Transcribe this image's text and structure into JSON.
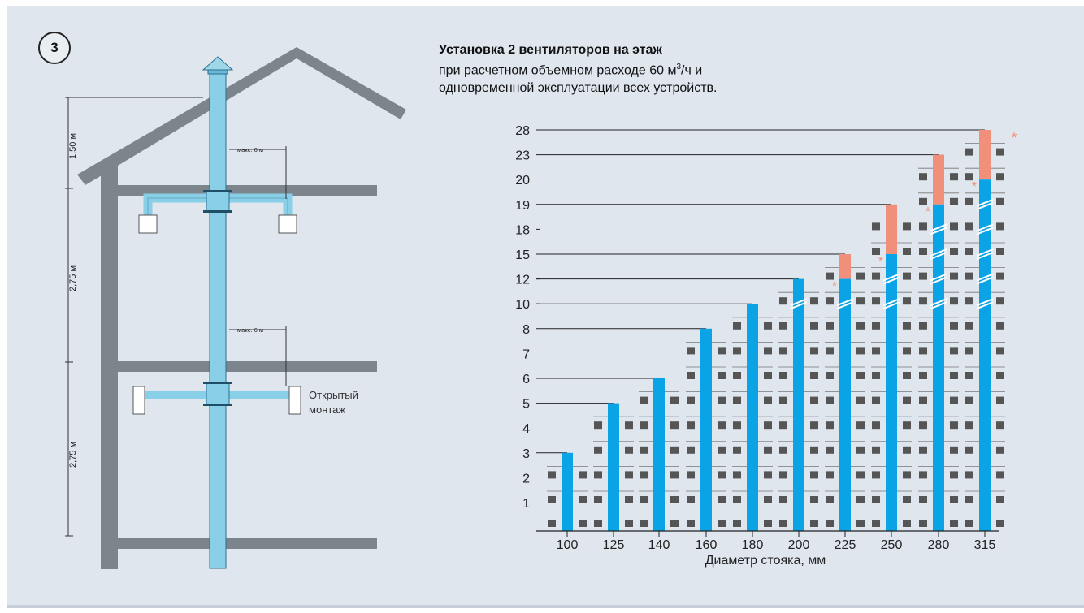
{
  "badge": "3",
  "title": "Установка 2 вентиляторов на этаж",
  "subtitle_line1_pre": "при расчетном объемном расходе 60 м",
  "subtitle_sup": "3",
  "subtitle_line1_post": "/ч и",
  "subtitle_line2": "одновременной эксплуатации всех устройств.",
  "diagram": {
    "dim_top": "1,50 м",
    "dim_mid": "2,75 м",
    "dim_bot": "2,75 м",
    "max_top": "макс. 6 м",
    "max_mid": "макс. 6 м",
    "open_mount_line1": "Открытый",
    "open_mount_line2": "монтаж"
  },
  "chart_data": {
    "type": "bar",
    "xlabel": "Диаметр стояка, мм",
    "categories": [
      "100",
      "125",
      "140",
      "160",
      "180",
      "200",
      "225",
      "250",
      "280",
      "315"
    ],
    "y_ticks": [
      "1",
      "2",
      "3",
      "4",
      "5",
      "6",
      "7",
      "8",
      "10",
      "12",
      "15",
      "18",
      "19",
      "20",
      "23",
      "28"
    ],
    "series": [
      {
        "values": [
          3,
          5,
          6,
          8,
          10,
          12,
          12,
          15,
          19,
          20
        ]
      },
      {
        "values": [
          0,
          0,
          0,
          0,
          0,
          0,
          15,
          19,
          23,
          28
        ]
      }
    ],
    "asterisk": "*",
    "colors": {
      "base": "#0aa3e5",
      "extended": "#f0907a",
      "fan": "#555555",
      "axis": "#222222"
    }
  }
}
